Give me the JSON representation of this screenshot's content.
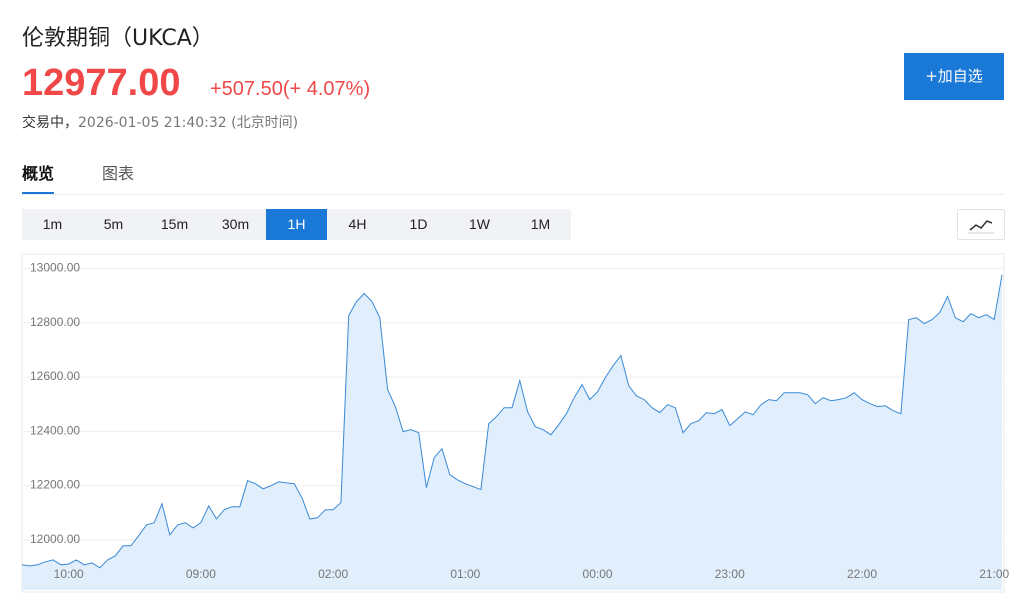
{
  "header": {
    "title": "伦敦期铜（UKCA）",
    "price": "12977.00",
    "change": "+507.50",
    "change_pct": "(+ 4.07%)",
    "status": "交易中，",
    "time": "2026-01-05 21:40:32 (北京时间)",
    "watch_button": "+加自选"
  },
  "tabs": [
    "概览",
    "图表"
  ],
  "periods": [
    "1m",
    "5m",
    "15m",
    "30m",
    "1H",
    "4H",
    "1D",
    "1W",
    "1M"
  ],
  "active_period": 4,
  "chart_data": {
    "type": "area",
    "color": "#3a8ad6",
    "fill": "#e1eefb",
    "grid": true,
    "series": [
      {
        "values": [
          11908,
          11904,
          11908,
          11919,
          11926,
          11908,
          11911,
          11926,
          11908,
          11915,
          11897,
          11926,
          11941,
          11978,
          11978,
          12015,
          12055,
          12063,
          12133,
          12018,
          12055,
          12063,
          12044,
          12063,
          12125,
          12077,
          12111,
          12122,
          12122,
          12218,
          12207,
          12188,
          12199,
          12214,
          12210,
          12207,
          12155,
          12077,
          12081,
          12111,
          12111,
          12137,
          12827,
          12878,
          12908,
          12878,
          12819,
          12554,
          12491,
          12399,
          12406,
          12395,
          12192,
          12303,
          12336,
          12240,
          12221,
          12207,
          12196,
          12185,
          12428,
          12454,
          12487,
          12487,
          12587,
          12472,
          12417,
          12406,
          12387,
          12424,
          12465,
          12524,
          12572,
          12517,
          12546,
          12598,
          12642,
          12679,
          12568,
          12531,
          12517,
          12487,
          12469,
          12498,
          12487,
          12395,
          12428,
          12439,
          12469,
          12465,
          12480,
          12421,
          12446,
          12472,
          12461,
          12498,
          12517,
          12513,
          12542,
          12542,
          12542,
          12535,
          12502,
          12524,
          12513,
          12517,
          12524,
          12542,
          12517,
          12502,
          12491,
          12494,
          12476,
          12465,
          12812,
          12819,
          12797,
          12812,
          12838,
          12897,
          12819,
          12804,
          12834,
          12819,
          12830,
          12812,
          12977
        ]
      }
    ],
    "xlim": [
      0,
      126
    ],
    "xticks": [
      {
        "value": 6,
        "label": "10:00"
      },
      {
        "value": 23,
        "label": "09:00"
      },
      {
        "value": 40,
        "label": "02:00"
      },
      {
        "value": 57,
        "label": "01:00"
      },
      {
        "value": 74,
        "label": "00:00"
      },
      {
        "value": 91,
        "label": "23:00"
      },
      {
        "value": 108,
        "label": "22:00"
      },
      {
        "value": 125,
        "label": "21:00"
      }
    ],
    "ylim": [
      11815,
      13050
    ],
    "yticks": [
      {
        "value": 12000,
        "label": "12000.00"
      },
      {
        "value": 12200,
        "label": "12200.00"
      },
      {
        "value": 12400,
        "label": "12400.00"
      },
      {
        "value": 12600,
        "label": "12600.00"
      },
      {
        "value": 12800,
        "label": "12800.00"
      },
      {
        "value": 13000,
        "label": "13000.00"
      }
    ]
  }
}
